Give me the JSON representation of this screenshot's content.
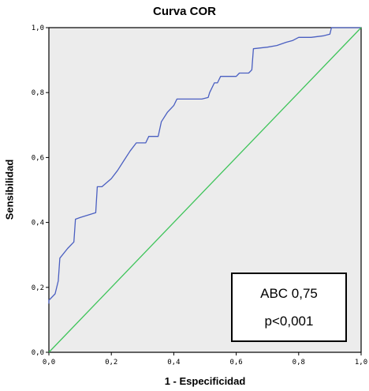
{
  "chart_data": {
    "type": "line",
    "title": "Curva COR",
    "xlabel": "1 - Especificidad",
    "ylabel": "Sensibilidad",
    "xlim": [
      0,
      1
    ],
    "ylim": [
      0,
      1
    ],
    "x_ticks": [
      "0,0",
      "0,2",
      "0,4",
      "0,6",
      "0,8",
      "1,0"
    ],
    "y_ticks": [
      "0,0",
      "0,2",
      "0,4",
      "0,6",
      "0,8",
      "1,0"
    ],
    "grid": false,
    "legend": "none",
    "background_color": "#ececec",
    "series": [
      {
        "color": "#4a5fc1",
        "points": [
          [
            0.0,
            0.15
          ],
          [
            0.0,
            0.16
          ],
          [
            0.02,
            0.18
          ],
          [
            0.03,
            0.22
          ],
          [
            0.035,
            0.29
          ],
          [
            0.06,
            0.32
          ],
          [
            0.08,
            0.34
          ],
          [
            0.085,
            0.41
          ],
          [
            0.1,
            0.415
          ],
          [
            0.15,
            0.43
          ],
          [
            0.155,
            0.51
          ],
          [
            0.17,
            0.51
          ],
          [
            0.2,
            0.535
          ],
          [
            0.22,
            0.56
          ],
          [
            0.24,
            0.59
          ],
          [
            0.26,
            0.62
          ],
          [
            0.28,
            0.645
          ],
          [
            0.31,
            0.645
          ],
          [
            0.32,
            0.665
          ],
          [
            0.35,
            0.665
          ],
          [
            0.36,
            0.71
          ],
          [
            0.38,
            0.74
          ],
          [
            0.4,
            0.76
          ],
          [
            0.41,
            0.78
          ],
          [
            0.49,
            0.78
          ],
          [
            0.51,
            0.785
          ],
          [
            0.515,
            0.8
          ],
          [
            0.53,
            0.83
          ],
          [
            0.54,
            0.83
          ],
          [
            0.55,
            0.85
          ],
          [
            0.6,
            0.85
          ],
          [
            0.61,
            0.86
          ],
          [
            0.64,
            0.86
          ],
          [
            0.65,
            0.87
          ],
          [
            0.655,
            0.935
          ],
          [
            0.7,
            0.94
          ],
          [
            0.73,
            0.945
          ],
          [
            0.76,
            0.955
          ],
          [
            0.78,
            0.96
          ],
          [
            0.8,
            0.97
          ],
          [
            0.84,
            0.97
          ],
          [
            0.88,
            0.975
          ],
          [
            0.9,
            0.98
          ],
          [
            0.905,
            1.0
          ],
          [
            0.92,
            1.0
          ],
          [
            1.0,
            1.0
          ]
        ]
      },
      {
        "color": "#3ec45a",
        "points": [
          [
            0,
            0
          ],
          [
            1,
            1
          ]
        ]
      }
    ],
    "annotation": {
      "line1": "ABC 0,75",
      "line2": "p<0,001"
    }
  }
}
